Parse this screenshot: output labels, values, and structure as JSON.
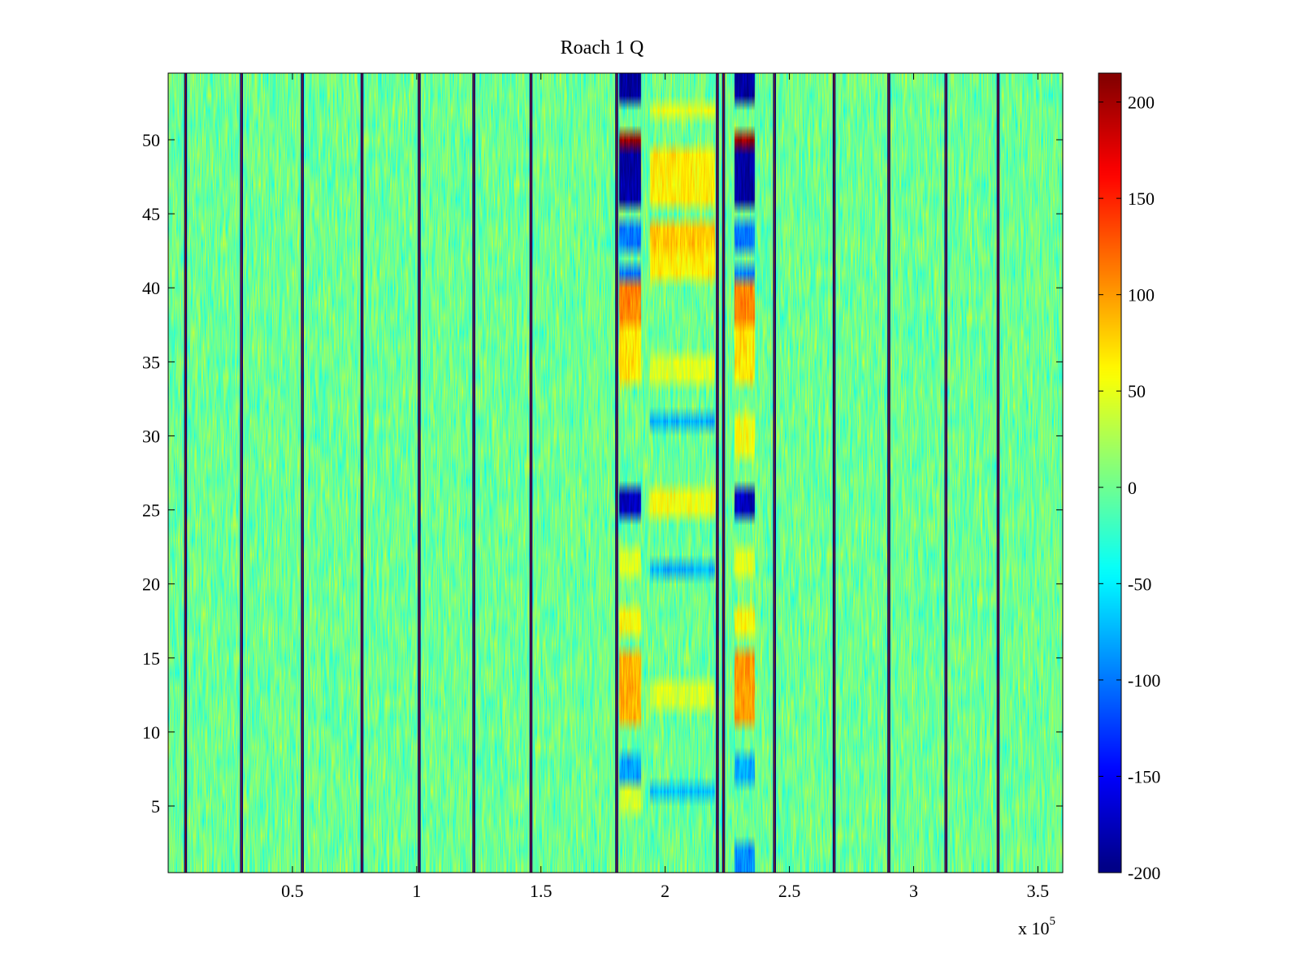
{
  "chart_data": {
    "type": "heatmap",
    "title": "Roach 1 Q",
    "xlabel": "",
    "ylabel": "",
    "colormap": "jet",
    "x_range": [
      0,
      360000
    ],
    "y_range": [
      0.5,
      54.5
    ],
    "x_ticks": [
      {
        "value": 50000,
        "label": "0.5"
      },
      {
        "value": 100000,
        "label": "1"
      },
      {
        "value": 150000,
        "label": "1.5"
      },
      {
        "value": 200000,
        "label": "2"
      },
      {
        "value": 250000,
        "label": "2.5"
      },
      {
        "value": 300000,
        "label": "3"
      },
      {
        "value": 350000,
        "label": "3.5"
      }
    ],
    "x_exponent": {
      "base": "x 10",
      "power": "5"
    },
    "y_ticks": [
      {
        "value": 5,
        "label": "5"
      },
      {
        "value": 10,
        "label": "10"
      },
      {
        "value": 15,
        "label": "15"
      },
      {
        "value": 20,
        "label": "20"
      },
      {
        "value": 25,
        "label": "25"
      },
      {
        "value": 30,
        "label": "30"
      },
      {
        "value": 35,
        "label": "35"
      },
      {
        "value": 40,
        "label": "40"
      },
      {
        "value": 45,
        "label": "45"
      },
      {
        "value": 50,
        "label": "50"
      }
    ],
    "colorbar": {
      "range": [
        -200,
        215
      ],
      "ticks": [
        {
          "value": 200,
          "label": "200"
        },
        {
          "value": 150,
          "label": "150"
        },
        {
          "value": 100,
          "label": "100"
        },
        {
          "value": 50,
          "label": "50"
        },
        {
          "value": 0,
          "label": "0"
        },
        {
          "value": -50,
          "label": "-50"
        },
        {
          "value": -100,
          "label": "-100"
        },
        {
          "value": -150,
          "label": "-150"
        },
        {
          "value": -200,
          "label": "-200"
        }
      ]
    },
    "background_value_range": [
      -45,
      45
    ],
    "boundary_lines_x": [
      7000,
      29500,
      54000,
      78000,
      101000,
      123000,
      146000,
      180500,
      221000,
      223500,
      244000,
      268000,
      290000,
      313000,
      334000
    ],
    "features": [
      {
        "x_range": [
          181500,
          190000
        ],
        "rows": [
          53,
          54
        ],
        "value": -190
      },
      {
        "x_range": [
          181500,
          190000
        ],
        "rows": [
          50
        ],
        "value": 205
      },
      {
        "x_range": [
          181500,
          190000
        ],
        "rows": [
          46,
          47,
          48,
          49
        ],
        "value": -185
      },
      {
        "x_range": [
          181500,
          190000
        ],
        "rows": [
          43,
          44
        ],
        "value": -100
      },
      {
        "x_range": [
          181500,
          190000
        ],
        "rows": [
          41
        ],
        "value": -100
      },
      {
        "x_range": [
          181500,
          190000
        ],
        "rows": [
          38,
          39,
          40
        ],
        "value": 110
      },
      {
        "x_range": [
          181500,
          190000
        ],
        "rows": [
          34,
          35,
          36,
          37
        ],
        "value": 70
      },
      {
        "x_range": [
          181500,
          190000
        ],
        "rows": [
          25,
          26
        ],
        "value": -175
      },
      {
        "x_range": [
          181500,
          190000
        ],
        "rows": [
          21,
          22
        ],
        "value": 45
      },
      {
        "x_range": [
          181500,
          190000
        ],
        "rows": [
          17,
          18
        ],
        "value": 60
      },
      {
        "x_range": [
          181500,
          190000
        ],
        "rows": [
          11,
          12,
          13,
          14,
          15
        ],
        "value": 90
      },
      {
        "x_range": [
          181500,
          190000
        ],
        "rows": [
          7,
          8
        ],
        "value": -80
      },
      {
        "x_range": [
          181500,
          190000
        ],
        "rows": [
          5,
          6
        ],
        "value": 40
      },
      {
        "x_range": [
          228000,
          236000
        ],
        "rows": [
          53,
          54
        ],
        "value": -190
      },
      {
        "x_range": [
          228000,
          236000
        ],
        "rows": [
          50
        ],
        "value": 205
      },
      {
        "x_range": [
          228000,
          236000
        ],
        "rows": [
          46,
          47,
          48,
          49
        ],
        "value": -185
      },
      {
        "x_range": [
          228000,
          236000
        ],
        "rows": [
          43,
          44
        ],
        "value": -100
      },
      {
        "x_range": [
          228000,
          236000
        ],
        "rows": [
          41
        ],
        "value": -100
      },
      {
        "x_range": [
          228000,
          236000
        ],
        "rows": [
          38,
          39,
          40
        ],
        "value": 110
      },
      {
        "x_range": [
          228000,
          236000
        ],
        "rows": [
          34,
          35,
          36,
          37
        ],
        "value": 70
      },
      {
        "x_range": [
          228000,
          236000
        ],
        "rows": [
          29,
          30,
          31
        ],
        "value": 55
      },
      {
        "x_range": [
          228000,
          236000
        ],
        "rows": [
          25,
          26
        ],
        "value": -175
      },
      {
        "x_range": [
          228000,
          236000
        ],
        "rows": [
          21,
          22
        ],
        "value": 45
      },
      {
        "x_range": [
          228000,
          236000
        ],
        "rows": [
          17,
          18
        ],
        "value": 60
      },
      {
        "x_range": [
          228000,
          236000
        ],
        "rows": [
          11,
          12,
          13,
          14,
          15
        ],
        "value": 100
      },
      {
        "x_range": [
          228000,
          236000
        ],
        "rows": [
          7,
          8
        ],
        "value": -80
      },
      {
        "x_range": [
          228000,
          236000
        ],
        "rows": [
          1,
          2
        ],
        "value": -90
      },
      {
        "x_range": [
          194000,
          220000
        ],
        "rows": [
          52
        ],
        "value": 50
      },
      {
        "x_range": [
          194000,
          220000
        ],
        "rows": [
          46,
          47,
          48,
          49
        ],
        "value": 65
      },
      {
        "x_range": [
          194000,
          220000
        ],
        "rows": [
          43,
          44
        ],
        "value": 80
      },
      {
        "x_range": [
          194000,
          220000
        ],
        "rows": [
          41,
          42
        ],
        "value": 65
      },
      {
        "x_range": [
          194000,
          220000
        ],
        "rows": [
          34,
          35
        ],
        "value": 45
      },
      {
        "x_range": [
          194000,
          220000
        ],
        "rows": [
          31
        ],
        "value": -75
      },
      {
        "x_range": [
          194000,
          220000
        ],
        "rows": [
          25,
          26
        ],
        "value": 55
      },
      {
        "x_range": [
          194000,
          220000
        ],
        "rows": [
          21
        ],
        "value": -75
      },
      {
        "x_range": [
          194000,
          220000
        ],
        "rows": [
          12,
          13
        ],
        "value": 40
      },
      {
        "x_range": [
          194000,
          220000
        ],
        "rows": [
          6
        ],
        "value": -70
      }
    ]
  }
}
